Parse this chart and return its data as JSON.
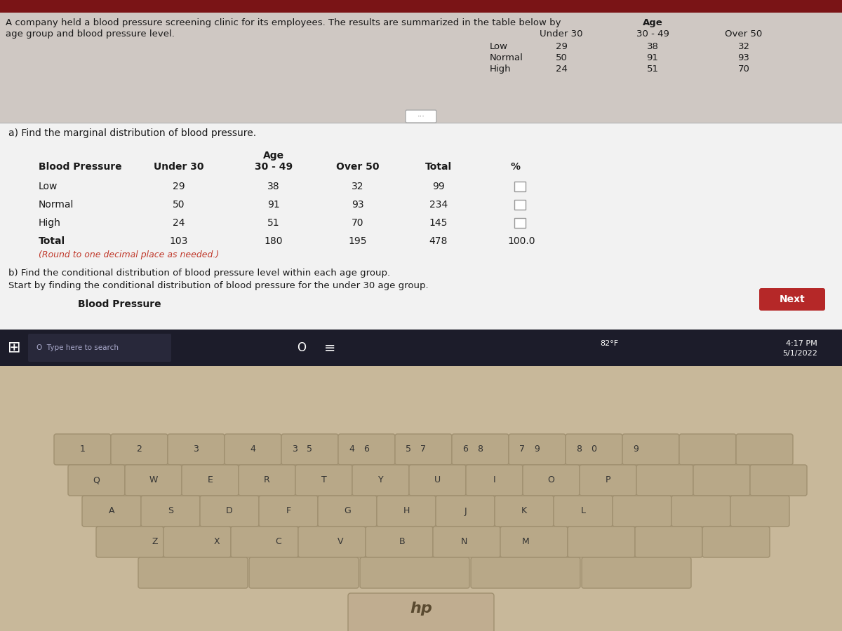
{
  "intro_text_line1": "A company held a blood pressure screening clinic for its employees. The results are summarized in the table below by",
  "intro_text_line2": "age group and blood pressure level.",
  "top_table": {
    "age_header": "Age",
    "col_headers": [
      "Under 30",
      "30 - 49",
      "Over 50"
    ],
    "row_headers": [
      "Low",
      "Normal",
      "High"
    ],
    "data": [
      [
        29,
        38,
        32
      ],
      [
        50,
        91,
        93
      ],
      [
        24,
        51,
        70
      ]
    ]
  },
  "part_a_label": "a) Find the marginal distribution of blood pressure.",
  "part_a_table": {
    "col1_header": "Blood Pressure",
    "col2_header": "Under 30",
    "age_label": "Age",
    "col3_header": "30 - 49",
    "col4_header": "Over 50",
    "col5_header": "Total",
    "col6_header": "%",
    "rows": [
      {
        "bp": "Low",
        "u30": "29",
        "a3049": "38",
        "o50": "32",
        "total": "99",
        "pct": ""
      },
      {
        "bp": "Normal",
        "u30": "50",
        "a3049": "91",
        "o50": "93",
        "total": "234",
        "pct": ""
      },
      {
        "bp": "High",
        "u30": "24",
        "a3049": "51",
        "o50": "70",
        "total": "145",
        "pct": ""
      },
      {
        "bp": "Total",
        "u30": "103",
        "a3049": "180",
        "o50": "195",
        "total": "478",
        "pct": "100.0"
      }
    ],
    "note": "(Round to one decimal place as needed.)"
  },
  "part_b_line1": "b) Find the conditional distribution of blood pressure level within each age group.",
  "part_b_line2": "Start by finding the conditional distribution of blood pressure for the under 30 age group.",
  "part_b_label": "Blood Pressure",
  "next_button_text": "Next",
  "screen_bg": "#f2f2f2",
  "screen_top_bg": "#cfc8c3",
  "screen_top_text_bg": "#ccc5c0",
  "dark_red_bar": "#7a1416",
  "separator_line": "#bbbbbb",
  "checkbox_color": "#ffffff",
  "checkbox_border": "#999999",
  "next_btn_color": "#b52828",
  "next_btn_text_color": "#ffffff",
  "taskbar_color": "#1c1c2a",
  "taskbar_icons_color": "#cccccc",
  "laptop_body_color": "#c8b89a",
  "laptop_body_dark": "#a0906e",
  "keyboard_key_color": "#b8a888",
  "keyboard_key_dark": "#a09070",
  "screen_border": "#888880",
  "bezel_color": "#2a2a28"
}
